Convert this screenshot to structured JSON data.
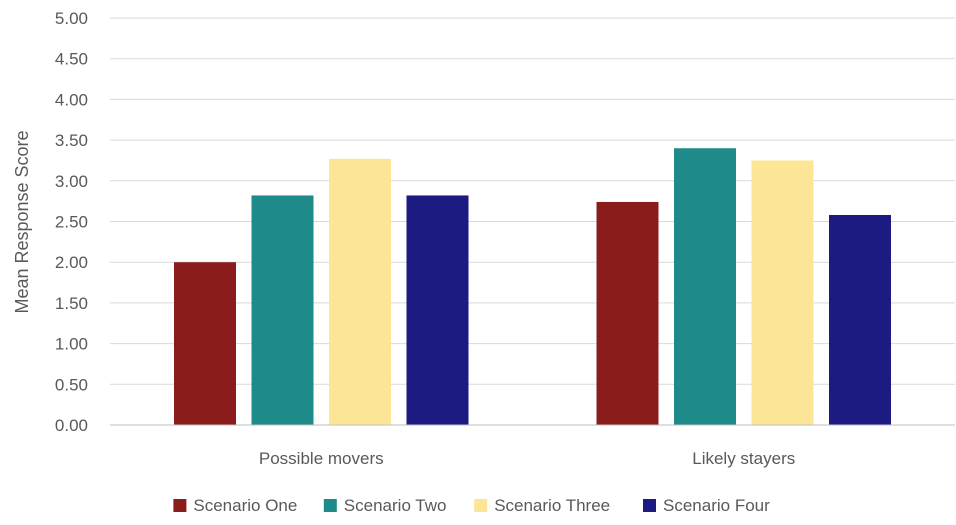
{
  "chart_data": {
    "type": "bar",
    "title": "",
    "xlabel": "",
    "ylabel": "Mean Response Score",
    "ylim": [
      0,
      5
    ],
    "ytick_step": 0.5,
    "grid": true,
    "legend_position": "bottom",
    "categories": [
      "Possible movers",
      "Likely stayers"
    ],
    "series": [
      {
        "name": "Scenario One",
        "color": "#8B1C1C",
        "values": [
          2.0,
          2.74
        ]
      },
      {
        "name": "Scenario Two",
        "color": "#1E8A8A",
        "values": [
          2.82,
          3.4
        ]
      },
      {
        "name": "Scenario Three",
        "color": "#FDE598",
        "values": [
          3.27,
          3.25
        ]
      },
      {
        "name": "Scenario Four",
        "color": "#1B1B82",
        "values": [
          2.82,
          2.58
        ]
      }
    ]
  }
}
